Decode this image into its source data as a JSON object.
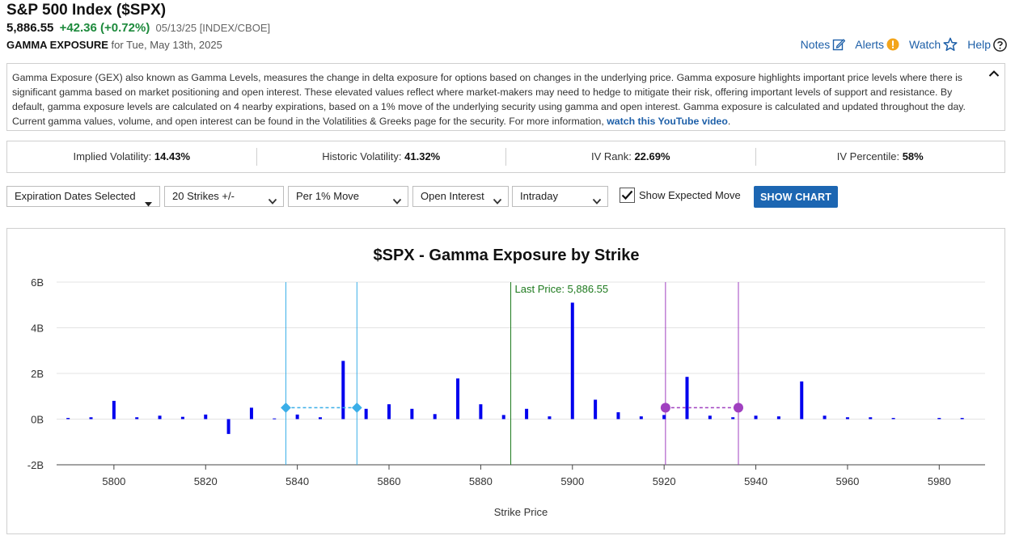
{
  "header": {
    "title": "S&P 500 Index ($SPX)",
    "last": "5,886.55",
    "change": "+42.36 (+0.72%)",
    "meta": "05/13/25 [INDEX/CBOE]",
    "sub_label": "GAMMA EXPOSURE",
    "sub_text": "for Tue, May 13th, 2025"
  },
  "links": {
    "notes": "Notes",
    "alerts": "Alerts",
    "watch": "Watch",
    "help": "Help"
  },
  "description": {
    "text": "Gamma Exposure (GEX) also known as Gamma Levels, measures the change in delta exposure for options based on changes in the underlying price. Gamma exposure highlights important price levels where there is significant gamma based on market positioning and open interest. These elevated values reflect where market-makers may need to hedge to mitigate their risk, offering important levels of support and resistance. By default, gamma exposure levels are calculated on 4 nearby expirations, based on a 1% move of the underlying security using gamma and open interest. Gamma exposure is calculated and updated throughout the day. Current gamma values, volume, and open interest can be found in the Volatilities & Greeks page for the security. For more information,",
    "link": "watch this YouTube video",
    "end": "."
  },
  "stats": [
    {
      "label": "Implied Volatility:",
      "value": "14.43%"
    },
    {
      "label": "Historic Volatility:",
      "value": "41.32%"
    },
    {
      "label": "IV Rank:",
      "value": "22.69%"
    },
    {
      "label": "IV Percentile:",
      "value": "58%"
    }
  ],
  "controls": {
    "expiration": "Expiration Dates Selected",
    "strikes": "20 Strikes +/-",
    "move": "Per 1% Move",
    "basis": "Open Interest",
    "period": "Intraday",
    "expected_move_label": "Show Expected Move",
    "expected_move_checked": true,
    "show_chart": "SHOW CHART"
  },
  "colors": {
    "bar": "#0000ee",
    "last_price_line": "#1e7a1e",
    "put_move": "#3aaee8",
    "call_move": "#a040c0",
    "button": "#1c66b2",
    "link": "#1d5fa8",
    "positive_change": "#1d8a3c"
  },
  "chart_data": {
    "type": "bar",
    "title": "$SPX - Gamma Exposure by Strike",
    "xlabel": "Strike Price",
    "ylabel": "",
    "ylim": [
      -2,
      6
    ],
    "xlim": [
      5787.5,
      5990
    ],
    "yticks": [
      -2,
      0,
      2,
      4,
      6
    ],
    "ytick_labels": [
      "-2B",
      "0B",
      "2B",
      "4B",
      "6B"
    ],
    "xticks": [
      5800,
      5820,
      5840,
      5860,
      5880,
      5900,
      5920,
      5940,
      5960,
      5980
    ],
    "grid": true,
    "strikes": [
      5790,
      5795,
      5800,
      5805,
      5810,
      5815,
      5820,
      5825,
      5830,
      5835,
      5840,
      5845,
      5850,
      5855,
      5860,
      5865,
      5870,
      5875,
      5880,
      5885,
      5890,
      5895,
      5900,
      5905,
      5910,
      5915,
      5920,
      5925,
      5930,
      5935,
      5940,
      5945,
      5950,
      5955,
      5960,
      5965,
      5970,
      5980,
      5985
    ],
    "values": [
      0.05,
      0.08,
      0.8,
      0.08,
      0.15,
      0.1,
      0.2,
      -0.65,
      0.5,
      0.03,
      0.2,
      0.08,
      2.55,
      0.45,
      0.65,
      0.45,
      0.22,
      1.78,
      0.65,
      0.18,
      0.45,
      0.12,
      5.1,
      0.85,
      0.3,
      0.12,
      0.18,
      1.85,
      0.15,
      0.08,
      0.15,
      0.12,
      1.65,
      0.15,
      0.08,
      0.08,
      0.05,
      0.05,
      0.05
    ],
    "last_price": 5886.55,
    "last_price_label": "Last Price: 5,886.55",
    "expected_move_low": [
      5837.5,
      5853
    ],
    "expected_move_high": [
      5920.3,
      5936.2
    ],
    "expected_move_level": 0.5
  }
}
